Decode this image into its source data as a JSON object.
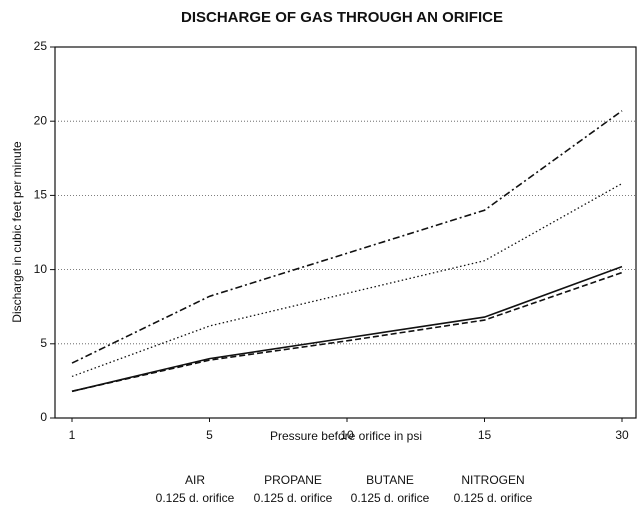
{
  "chart_data": {
    "type": "line",
    "title": "DISCHARGE OF GAS THROUGH AN ORIFICE",
    "x_label": "Pressure before orifice in psi",
    "y_label": "Discharge in cubic feet per minute",
    "categories": [
      "1",
      "5",
      "10",
      "15",
      "30"
    ],
    "ylim": [
      0,
      25
    ],
    "yticks": [
      0,
      5,
      10,
      15,
      20,
      25
    ],
    "grid": true,
    "legend": "bottom",
    "series": [
      {
        "name": "AIR",
        "description": "0.125 d. orifice",
        "color": "#111111",
        "dash": "solid",
        "values": [
          1.8,
          4.0,
          5.4,
          6.8,
          10.2
        ]
      },
      {
        "name": "PROPANE",
        "description": "0.125 d. orifice",
        "color": "#111111",
        "dash": "dotted",
        "values": [
          2.8,
          6.2,
          8.4,
          10.6,
          15.8
        ]
      },
      {
        "name": "BUTANE",
        "description": "0.125 d. orifice",
        "color": "#111111",
        "dash": "dashdot",
        "values": [
          3.7,
          8.2,
          11.1,
          14.0,
          20.7
        ]
      },
      {
        "name": "NITROGEN",
        "description": "0.125 d. orifice",
        "color": "#111111",
        "dash": "dashed",
        "values": [
          1.8,
          3.9,
          5.2,
          6.6,
          9.8
        ]
      }
    ]
  }
}
